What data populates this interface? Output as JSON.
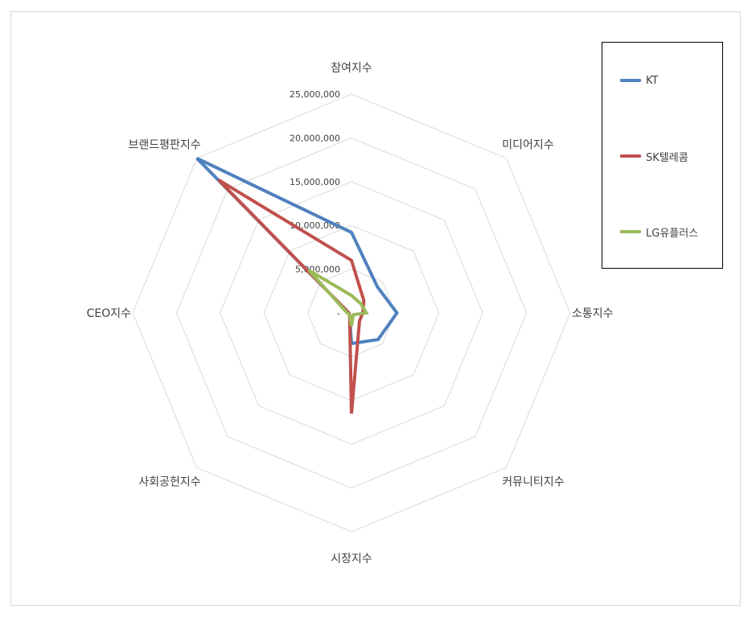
{
  "chart_data": {
    "type": "radar",
    "title": "",
    "categories": [
      "참여지수",
      "미디어지수",
      "소통지수",
      "커뮤니티지수",
      "시장지수",
      "사회공헌지수",
      "CEO지수",
      "브랜드평판지수"
    ],
    "tick_labels": [
      "-",
      "5,000,000",
      "10,000,000",
      "15,000,000",
      "20,000,000",
      "25,000,000"
    ],
    "rlim": [
      0,
      25000000
    ],
    "grid": true,
    "legend_position": "right",
    "series": [
      {
        "name": "KT",
        "color": "#4f81bd",
        "values": [
          9200000,
          4200000,
          5200000,
          4300000,
          3500000,
          300000,
          300000,
          25000000
        ]
      },
      {
        "name": "SK텔레콤",
        "color": "#c0504d",
        "values": [
          6000000,
          2000000,
          1300000,
          1300000,
          11500000,
          300000,
          300000,
          21500000
        ]
      },
      {
        "name": "LG유플러스",
        "color": "#9bbb59",
        "values": [
          2000000,
          1500000,
          1700000,
          300000,
          1500000,
          300000,
          500000,
          6900000
        ]
      }
    ]
  }
}
